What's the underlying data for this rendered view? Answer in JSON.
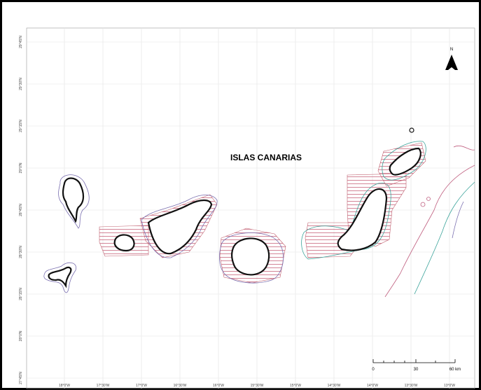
{
  "title": "ISLAS CANARIAS",
  "north_arrow": "N",
  "scale_bar": [
    "0",
    "30",
    "60 km"
  ],
  "latitude_labels": [
    "29°45'N",
    "29°30'N",
    "29°15'N",
    "29°0'N",
    "28°45'N",
    "28°30'N",
    "28°15'N",
    "28°0'N",
    "27°45'N"
  ],
  "longitude_labels": [
    "18°0'W",
    "17°30'W",
    "17°0'W",
    "16°30'W",
    "16°0'W",
    "15°30'W",
    "15°0'W",
    "14°30'W",
    "14°0'W",
    "13°30'W",
    "13°0'W"
  ]
}
